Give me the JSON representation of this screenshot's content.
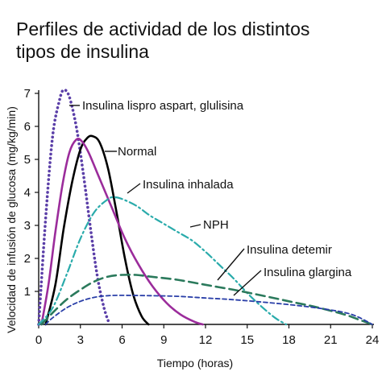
{
  "title_lines": [
    "Perfiles de actividad de los distintos",
    "tipos de insulina"
  ],
  "chart_data": {
    "type": "line",
    "title": "Perfiles de actividad de los distintos tipos de insulina",
    "xlabel": "Tiempo (horas)",
    "ylabel": "Velocidad de infusión de glucosa (mg/kg/min)",
    "xlim": [
      0,
      24
    ],
    "ylim": [
      0,
      7
    ],
    "xticks": [
      0,
      3,
      6,
      9,
      12,
      15,
      18,
      21,
      24
    ],
    "yticks": [
      1,
      2,
      3,
      4,
      5,
      6,
      7
    ],
    "grid": false,
    "series": [
      {
        "name": "Insulina lispro aspart, glulisina",
        "color": "#5b3fa8",
        "style": "dotted",
        "x": [
          0,
          0.5,
          1,
          1.5,
          1.8,
          2.2,
          2.7,
          3.2,
          3.7,
          4.2,
          4.7,
          5.1
        ],
        "y": [
          0,
          3.2,
          5.7,
          6.8,
          7.1,
          6.9,
          6.0,
          4.6,
          3.0,
          1.5,
          0.5,
          0
        ]
      },
      {
        "name": "Normal",
        "color": "#000000",
        "style": "solid",
        "x": [
          0.5,
          1.2,
          1.8,
          2.4,
          3.0,
          3.5,
          3.9,
          4.4,
          5.0,
          5.6,
          6.2,
          6.8,
          7.4,
          7.9
        ],
        "y": [
          0,
          1.2,
          2.9,
          4.3,
          5.3,
          5.65,
          5.7,
          5.5,
          4.7,
          3.4,
          2.0,
          0.9,
          0.25,
          0
        ]
      },
      {
        "name": "Insulina inhalada",
        "color": "#9b2c9b",
        "style": "solid",
        "x": [
          0.2,
          0.7,
          1.2,
          1.7,
          2.2,
          2.7,
          3.1,
          3.6,
          4.3,
          5.2,
          6.2,
          7.2,
          8.2,
          9.2,
          10.2,
          11.2,
          11.8
        ],
        "y": [
          0,
          1.2,
          2.8,
          4.2,
          5.2,
          5.6,
          5.55,
          5.2,
          4.5,
          3.6,
          2.6,
          1.8,
          1.15,
          0.65,
          0.3,
          0.08,
          0
        ]
      },
      {
        "name": "NPH",
        "color": "#2aabab",
        "style": "dashdot",
        "x": [
          0,
          1,
          2,
          3,
          4,
          5,
          5.5,
          6,
          7,
          8,
          9,
          10,
          11,
          12,
          13,
          14,
          15,
          16,
          17,
          17.8
        ],
        "y": [
          0,
          0.5,
          1.5,
          2.6,
          3.4,
          3.8,
          3.85,
          3.8,
          3.6,
          3.3,
          3.05,
          2.8,
          2.55,
          2.2,
          1.8,
          1.4,
          0.95,
          0.55,
          0.2,
          0
        ]
      },
      {
        "name": "Insulina detemir",
        "color": "#2b7a5c",
        "style": "dashed",
        "x": [
          0.2,
          1,
          2,
          3,
          4,
          5,
          6,
          7,
          8,
          10,
          12,
          14,
          16,
          18,
          20,
          22,
          23,
          24
        ],
        "y": [
          0,
          0.35,
          0.75,
          1.05,
          1.3,
          1.45,
          1.5,
          1.5,
          1.45,
          1.35,
          1.2,
          1.05,
          0.88,
          0.7,
          0.52,
          0.3,
          0.15,
          0
        ]
      },
      {
        "name": "Insulina glargina",
        "color": "#2a3fa8",
        "style": "shortdash",
        "x": [
          0.5,
          1,
          2,
          3,
          4,
          5,
          6,
          8,
          10,
          12,
          14,
          16,
          18,
          20,
          22,
          23,
          24
        ],
        "y": [
          0,
          0.2,
          0.5,
          0.7,
          0.82,
          0.87,
          0.88,
          0.87,
          0.85,
          0.8,
          0.75,
          0.68,
          0.6,
          0.5,
          0.36,
          0.22,
          0
        ]
      }
    ]
  }
}
